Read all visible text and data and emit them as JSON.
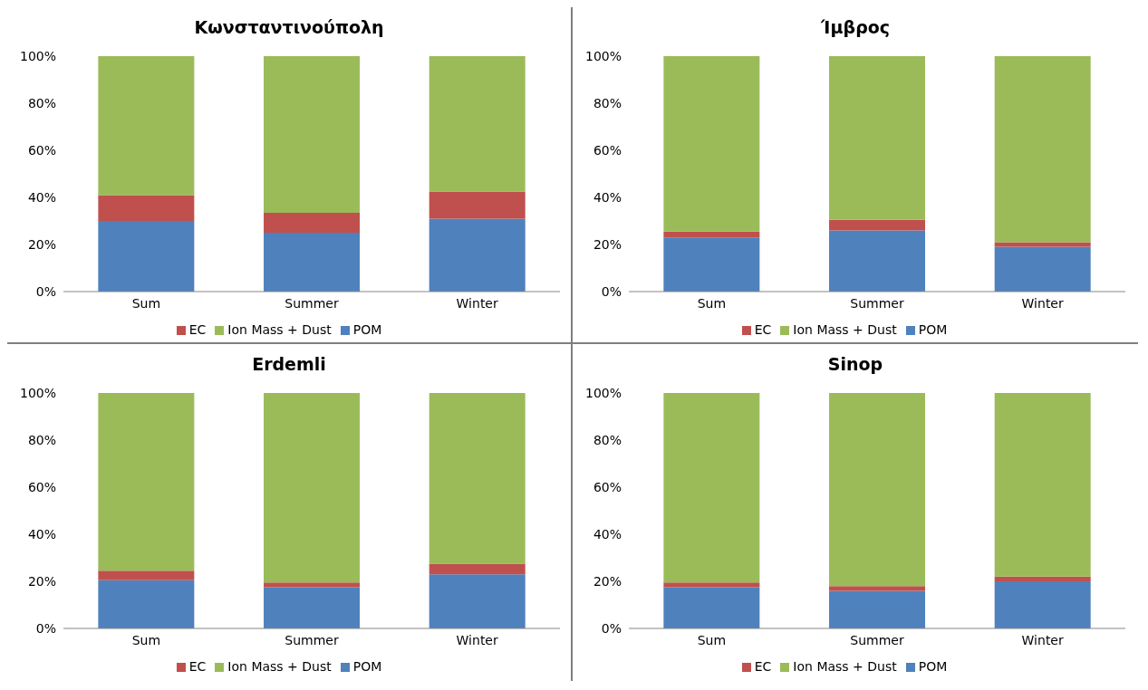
{
  "chart_data": [
    {
      "type": "bar",
      "title": "Κωνσταντινούπολη",
      "categories": [
        "Sum",
        "Summer",
        "Winter"
      ],
      "stacked": true,
      "ylim": [
        0,
        100
      ],
      "yticks": [
        {
          "value": 0,
          "label": "0%"
        },
        {
          "value": 20,
          "label": "20%"
        },
        {
          "value": 40,
          "label": "40%"
        },
        {
          "value": 60,
          "label": "60%"
        },
        {
          "value": 80,
          "label": "80%"
        },
        {
          "value": 100,
          "label": "100%"
        }
      ],
      "grid": false,
      "legend": "bottom",
      "series": [
        {
          "name": "POM",
          "color": "#4f81bd",
          "values": [
            30,
            25,
            31
          ]
        },
        {
          "name": "EC",
          "color": "#c0504d",
          "values": [
            11,
            8.5,
            11.5
          ]
        },
        {
          "name": "Ion Mass + Dust",
          "color": "#9bbb59",
          "values": [
            59,
            66.5,
            57.5
          ]
        }
      ]
    },
    {
      "type": "bar",
      "title": "Ίμβρος",
      "categories": [
        "Sum",
        "Summer",
        "Winter"
      ],
      "stacked": true,
      "ylim": [
        0,
        100
      ],
      "yticks": [
        {
          "value": 0,
          "label": "0%"
        },
        {
          "value": 20,
          "label": "20%"
        },
        {
          "value": 40,
          "label": "40%"
        },
        {
          "value": 60,
          "label": "60%"
        },
        {
          "value": 80,
          "label": "80%"
        },
        {
          "value": 100,
          "label": "100%"
        }
      ],
      "grid": false,
      "legend": "bottom",
      "series": [
        {
          "name": "POM",
          "color": "#4f81bd",
          "values": [
            23,
            26,
            19
          ]
        },
        {
          "name": "EC",
          "color": "#c0504d",
          "values": [
            2.5,
            4.5,
            2
          ]
        },
        {
          "name": "Ion Mass + Dust",
          "color": "#9bbb59",
          "values": [
            74.5,
            69.5,
            79
          ]
        }
      ]
    },
    {
      "type": "bar",
      "title": "Erdemli",
      "categories": [
        "Sum",
        "Summer",
        "Winter"
      ],
      "stacked": true,
      "ylim": [
        0,
        100
      ],
      "yticks": [
        {
          "value": 0,
          "label": "0%"
        },
        {
          "value": 20,
          "label": "20%"
        },
        {
          "value": 40,
          "label": "40%"
        },
        {
          "value": 60,
          "label": "60%"
        },
        {
          "value": 80,
          "label": "80%"
        },
        {
          "value": 100,
          "label": "100%"
        }
      ],
      "grid": false,
      "legend": "bottom",
      "series": [
        {
          "name": "POM",
          "color": "#4f81bd",
          "values": [
            20.5,
            17.5,
            23
          ]
        },
        {
          "name": "EC",
          "color": "#c0504d",
          "values": [
            4,
            2,
            4.5
          ]
        },
        {
          "name": "Ion Mass + Dust",
          "color": "#9bbb59",
          "values": [
            75.5,
            80.5,
            72.5
          ]
        }
      ]
    },
    {
      "type": "bar",
      "title": "Sinop",
      "categories": [
        "Sum",
        "Summer",
        "Winter"
      ],
      "stacked": true,
      "ylim": [
        0,
        100
      ],
      "yticks": [
        {
          "value": 0,
          "label": "0%"
        },
        {
          "value": 20,
          "label": "20%"
        },
        {
          "value": 40,
          "label": "40%"
        },
        {
          "value": 60,
          "label": "60%"
        },
        {
          "value": 80,
          "label": "80%"
        },
        {
          "value": 100,
          "label": "100%"
        }
      ],
      "grid": false,
      "legend": "bottom",
      "series": [
        {
          "name": "POM",
          "color": "#4f81bd",
          "values": [
            17.5,
            16,
            20
          ]
        },
        {
          "name": "EC",
          "color": "#c0504d",
          "values": [
            2,
            2,
            2
          ]
        },
        {
          "name": "Ion Mass + Dust",
          "color": "#9bbb59",
          "values": [
            80.5,
            82,
            78
          ]
        }
      ]
    }
  ]
}
